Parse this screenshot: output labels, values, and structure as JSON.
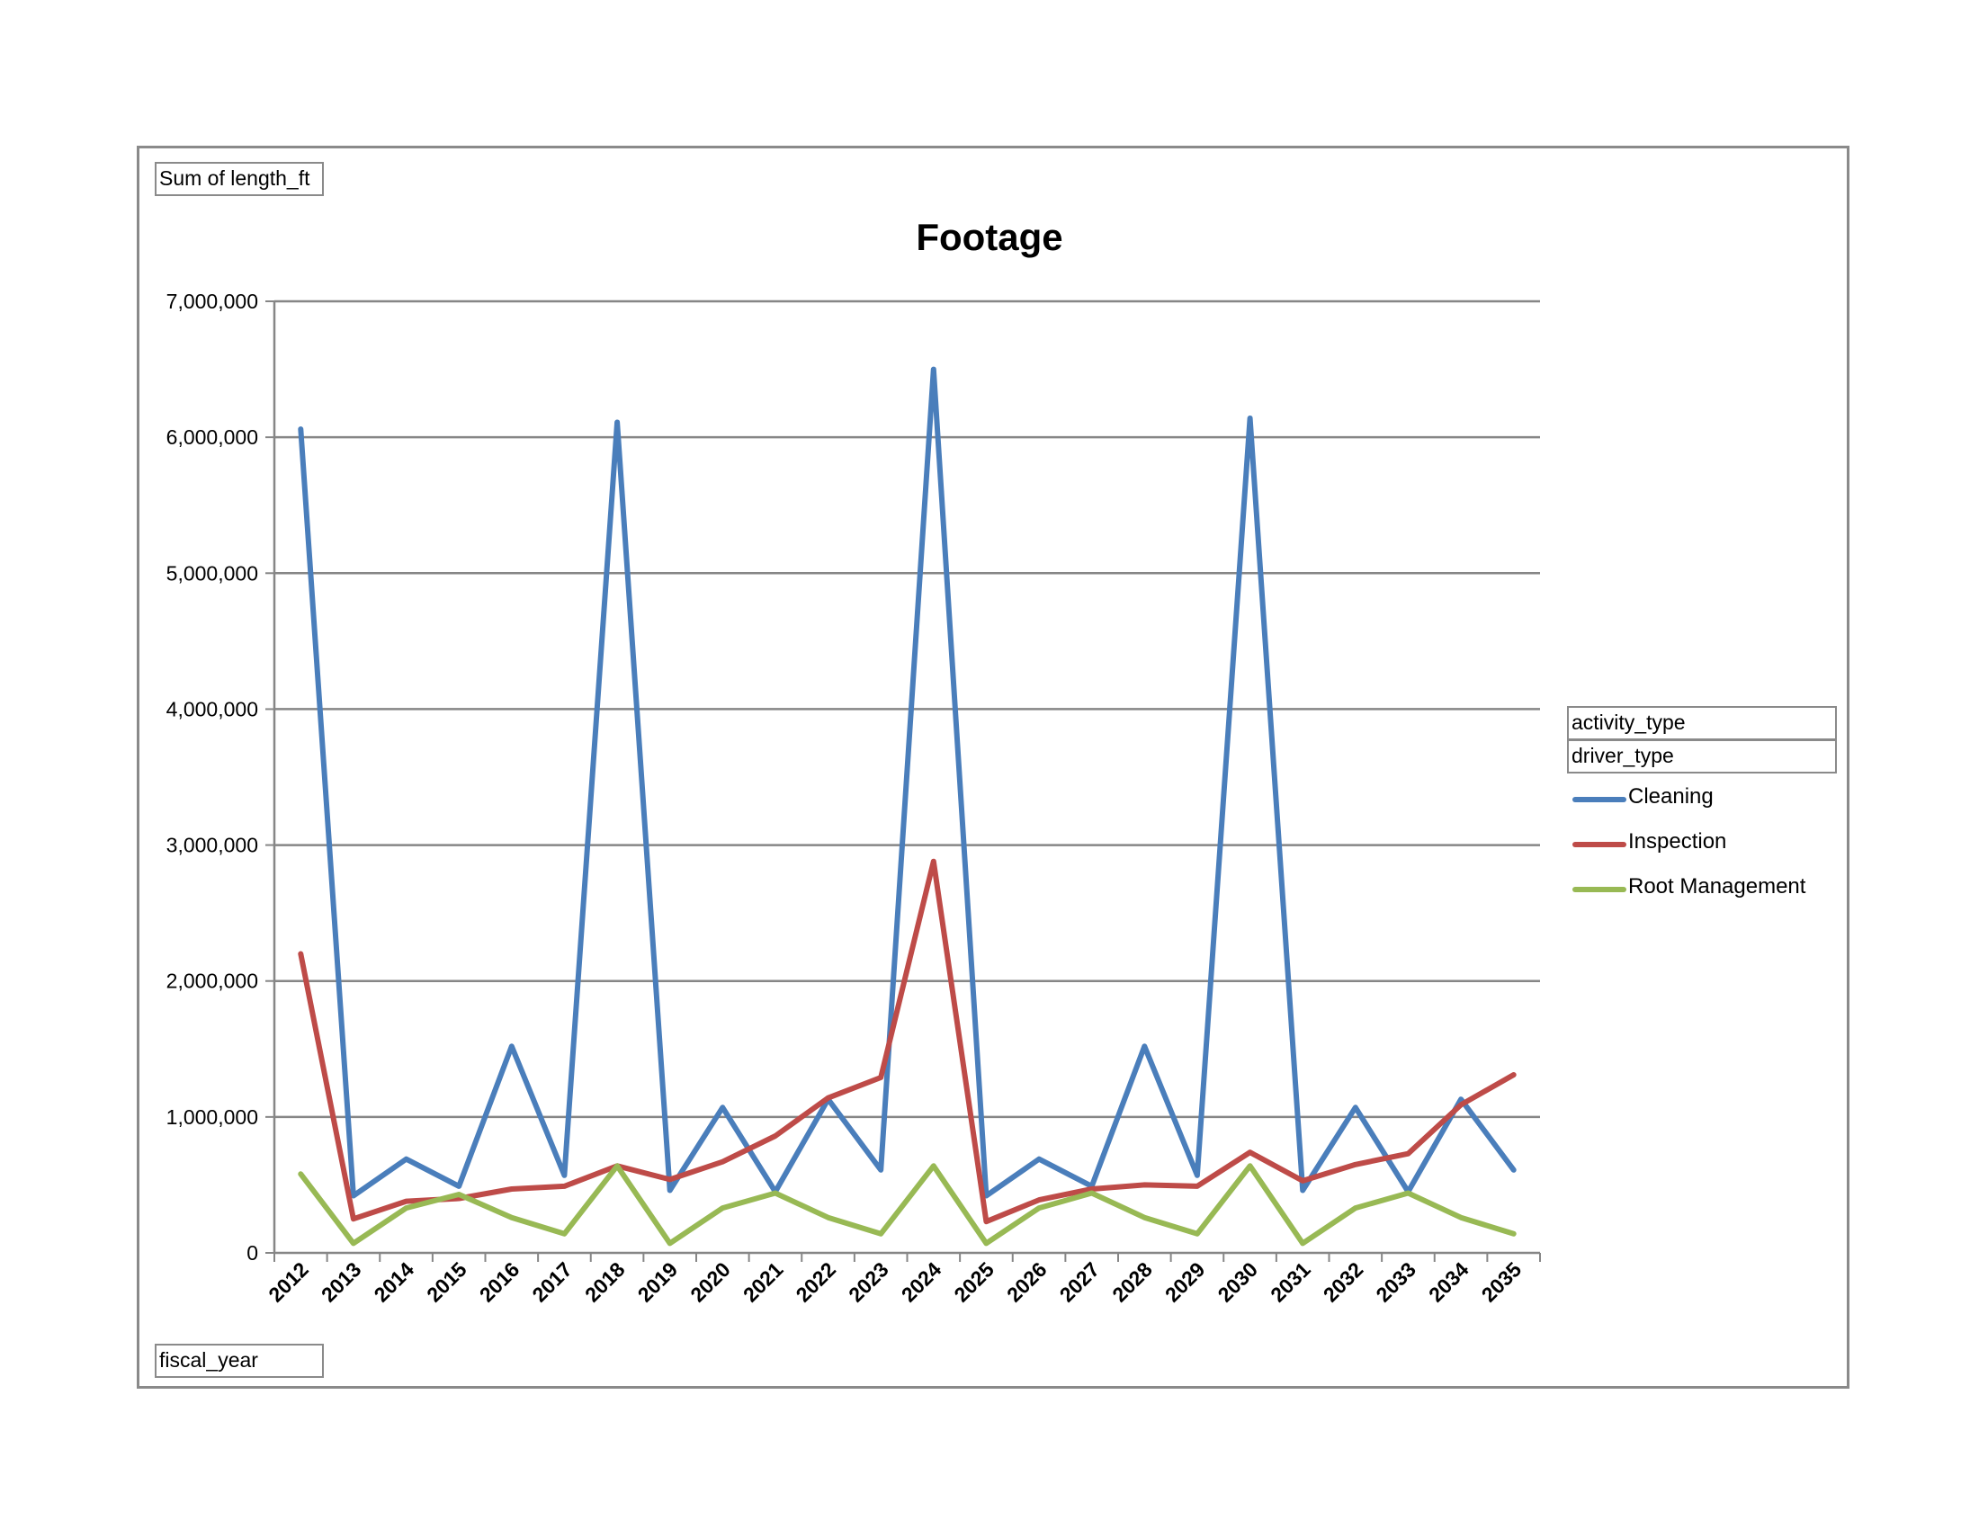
{
  "pivot_fields": {
    "values_field": "Sum of length_ft",
    "axis_field": "fiscal_year",
    "legend_fields": [
      "activity_type",
      "driver_type"
    ]
  },
  "chart_data": {
    "type": "line",
    "title": "Footage",
    "xlabel": "",
    "ylabel": "",
    "categories": [
      "2012",
      "2013",
      "2014",
      "2015",
      "2016",
      "2017",
      "2018",
      "2019",
      "2020",
      "2021",
      "2022",
      "2023",
      "2024",
      "2025",
      "2026",
      "2027",
      "2028",
      "2029",
      "2030",
      "2031",
      "2032",
      "2033",
      "2034",
      "2035"
    ],
    "ylim": [
      0,
      7000000
    ],
    "yticks": [
      0,
      1000000,
      2000000,
      3000000,
      4000000,
      5000000,
      6000000,
      7000000
    ],
    "ytick_labels": [
      "0",
      "1,000,000",
      "2,000,000",
      "3,000,000",
      "4,000,000",
      "5,000,000",
      "6,000,000",
      "7,000,000"
    ],
    "grid": true,
    "legend_position": "right",
    "series": [
      {
        "name": "Cleaning",
        "color": "#4a7ebb",
        "values": [
          6060000,
          420000,
          690000,
          490000,
          1520000,
          570000,
          6110000,
          460000,
          1070000,
          450000,
          1130000,
          610000,
          6500000,
          420000,
          690000,
          490000,
          1520000,
          570000,
          6140000,
          460000,
          1070000,
          450000,
          1130000,
          610000
        ]
      },
      {
        "name": "Inspection",
        "color": "#be4b48",
        "values": [
          2200000,
          250000,
          380000,
          400000,
          470000,
          490000,
          640000,
          540000,
          670000,
          860000,
          1140000,
          1290000,
          2880000,
          230000,
          390000,
          470000,
          500000,
          490000,
          740000,
          530000,
          650000,
          730000,
          1090000,
          1310000
        ]
      },
      {
        "name": "Root Management",
        "color": "#98b954",
        "values": [
          580000,
          70000,
          330000,
          430000,
          260000,
          140000,
          640000,
          70000,
          330000,
          440000,
          260000,
          140000,
          640000,
          70000,
          330000,
          440000,
          260000,
          140000,
          640000,
          70000,
          330000,
          440000,
          260000,
          140000
        ]
      }
    ]
  }
}
